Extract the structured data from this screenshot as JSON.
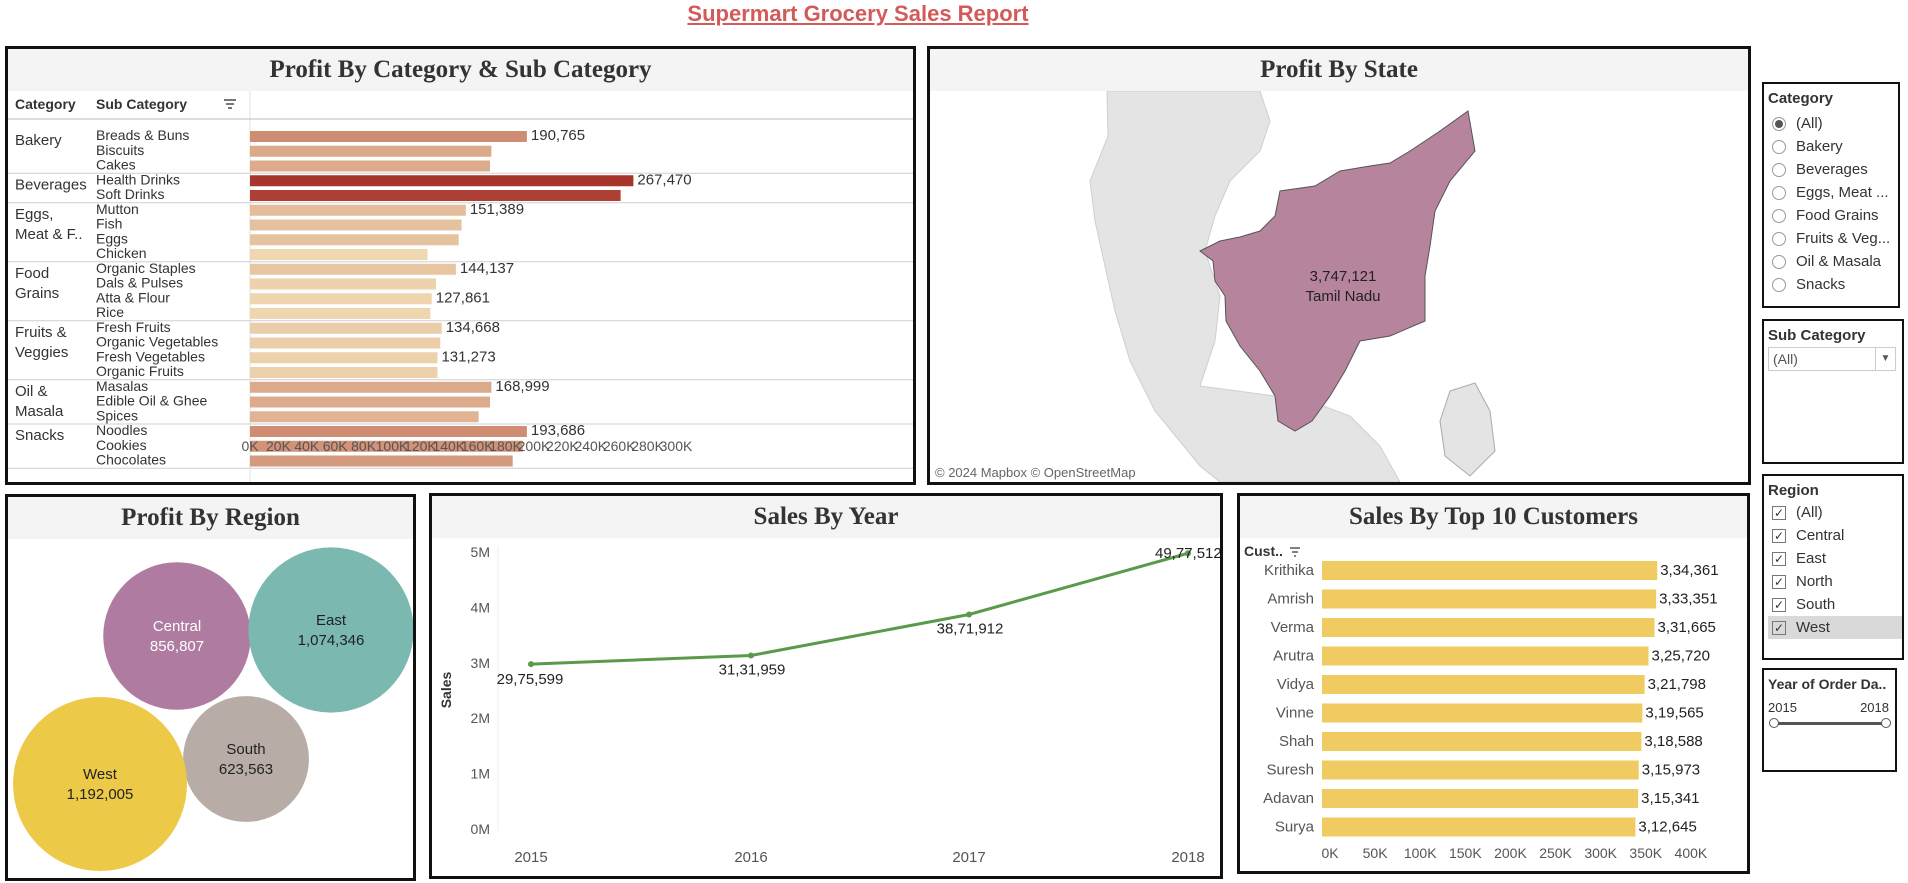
{
  "report": {
    "title": "Supermart Grocery Sales Report"
  },
  "colors": {
    "title": "#d45a5a",
    "bar_low": "#efd7b0",
    "bar_high": "#a8352b",
    "map_state": "#b7849e",
    "line": "#5a9a4a",
    "customer_bar": "#efcb62"
  },
  "category_chart": {
    "title": "Profit By Category & Sub Category",
    "header_category": "Category",
    "header_subcategory": "Sub Category",
    "sort_icon": "sort-icon",
    "axis_ticks": [
      "0K",
      "20K",
      "40K",
      "60K",
      "80K",
      "100K",
      "120K",
      "140K",
      "160K",
      "180K",
      "200K",
      "220K",
      "240K",
      "260K",
      "280K",
      "300K"
    ]
  },
  "map": {
    "title": "Profit By State",
    "state_value": "3,747,121",
    "state_name": "Tamil Nadu",
    "attribution": "© 2024 Mapbox © OpenStreetMap"
  },
  "region_chart": {
    "title": "Profit By Region"
  },
  "year_chart": {
    "title": "Sales By Year",
    "ylabel": "Sales"
  },
  "customer_chart": {
    "title": "Sales By Top 10 Customers",
    "header": "Cust..",
    "sort_icon": "sort-icon"
  },
  "filters": {
    "category": {
      "title": "Category",
      "options": [
        "(All)",
        "Bakery",
        "Beverages",
        "Eggs, Meat ...",
        "Food Grains",
        "Fruits & Veg...",
        "Oil & Masala",
        "Snacks"
      ],
      "selected": "(All)"
    },
    "subcategory": {
      "title": "Sub Category",
      "value": "(All)"
    },
    "region": {
      "title": "Region",
      "options": [
        "(All)",
        "Central",
        "East",
        "North",
        "South",
        "West"
      ],
      "highlighted": "West"
    },
    "year": {
      "title": "Year of Order Da..",
      "min_label": "2015",
      "max_label": "2018"
    }
  },
  "chart_data": [
    {
      "type": "bar",
      "orientation": "horizontal",
      "title": "Profit By Category & Sub Category",
      "xlim": [
        0,
        300000
      ],
      "groups": [
        {
          "category": "Bakery",
          "label_lines": [
            "Bakery"
          ],
          "total_label": "190,765",
          "items": [
            {
              "name": "Breads & Buns",
              "value": 195000
            },
            {
              "name": "Biscuits",
              "value": 170000
            },
            {
              "name": "Cakes",
              "value": 169000
            }
          ]
        },
        {
          "category": "Beverages",
          "label_lines": [
            "Beverages"
          ],
          "total_label": "267,470",
          "items": [
            {
              "name": "Health Drinks",
              "value": 270000
            },
            {
              "name": "Soft Drinks",
              "value": 261000
            }
          ]
        },
        {
          "category": "Eggs, Meat & F..",
          "label_lines": [
            "Eggs,",
            "Meat & F.."
          ],
          "total_label": "151,389",
          "items": [
            {
              "name": "Mutton",
              "value": 152000
            },
            {
              "name": "Fish",
              "value": 149000
            },
            {
              "name": "Eggs",
              "value": 147000
            },
            {
              "name": "Chicken",
              "value": 125000
            }
          ]
        },
        {
          "category": "Food Grains",
          "label_lines": [
            "Food",
            "Grains"
          ],
          "total_label": "144,137",
          "items": [
            {
              "name": "Organic Staples",
              "value": 145000
            },
            {
              "name": "Dals & Pulses",
              "value": 131000
            },
            {
              "name": "Atta & Flour",
              "value": 128000
            },
            {
              "name": "Rice",
              "value": 127000
            }
          ]
        },
        {
          "category": "Fruits & Veggies",
          "label_lines": [
            "Fruits &",
            "Veggies"
          ],
          "total_label": "134,668",
          "items": [
            {
              "name": "Fresh Fruits",
              "value": 135000
            },
            {
              "name": "Organic Vegetables",
              "value": 134000
            },
            {
              "name": "Fresh Vegetables",
              "value": 132000
            },
            {
              "name": "Organic Fruits",
              "value": 132000
            }
          ]
        },
        {
          "category": "Oil & Masala",
          "label_lines": [
            "Oil &",
            "Masala"
          ],
          "total_label": "168,999",
          "items": [
            {
              "name": "Masalas",
              "value": 170000
            },
            {
              "name": "Edible Oil & Ghee",
              "value": 169000
            },
            {
              "name": "Spices",
              "value": 161000
            }
          ]
        },
        {
          "category": "Snacks",
          "label_lines": [
            "Snacks"
          ],
          "total_label": "193,686",
          "items": [
            {
              "name": "Noodles",
              "value": 195000
            },
            {
              "name": "Cookies",
              "value": 192000
            },
            {
              "name": "Chocolates",
              "value": 185000
            }
          ]
        }
      ],
      "extra_labels": [
        {
          "after": "Atta & Flour",
          "text": "127,861"
        },
        {
          "after": "Fresh Vegetables",
          "text": "131,273"
        }
      ]
    },
    {
      "type": "bubble",
      "title": "Profit By Region",
      "series": [
        {
          "name": "Central",
          "value": 856807,
          "label": "856,807",
          "color": "#b07ba1"
        },
        {
          "name": "East",
          "value": 1074346,
          "label": "1,074,346",
          "color": "#7ab8b0"
        },
        {
          "name": "South",
          "value": 623563,
          "label": "623,563",
          "color": "#b8ada6"
        },
        {
          "name": "West",
          "value": 1192005,
          "label": "1,192,005",
          "color": "#edc948"
        }
      ]
    },
    {
      "type": "line",
      "title": "Sales By Year",
      "ylabel": "Sales",
      "x": [
        "2015",
        "2016",
        "2017",
        "2018"
      ],
      "values": [
        2975599,
        3131959,
        3871912,
        4977512
      ],
      "labels": [
        "29,75,599",
        "31,31,959",
        "38,71,912",
        "49,77,512"
      ],
      "ylim": [
        0,
        5000000
      ],
      "yticks": [
        "0M",
        "1M",
        "2M",
        "3M",
        "4M",
        "5M"
      ]
    },
    {
      "type": "bar",
      "orientation": "horizontal",
      "title": "Sales By Top 10 Customers",
      "categories": [
        "Krithika",
        "Amrish",
        "Verma",
        "Arutra",
        "Vidya",
        "Vinne",
        "Shah",
        "Suresh",
        "Adavan",
        "Surya"
      ],
      "values": [
        334361,
        333351,
        331665,
        325720,
        321798,
        319565,
        318588,
        315973,
        315341,
        312645
      ],
      "labels": [
        "3,34,361",
        "3,33,351",
        "3,31,665",
        "3,25,720",
        "3,21,798",
        "3,19,565",
        "3,18,588",
        "3,15,973",
        "3,15,341",
        "3,12,645"
      ],
      "xlim": [
        0,
        400000
      ],
      "xticks": [
        "0K",
        "50K",
        "100K",
        "150K",
        "200K",
        "250K",
        "300K",
        "350K",
        "400K"
      ]
    }
  ]
}
